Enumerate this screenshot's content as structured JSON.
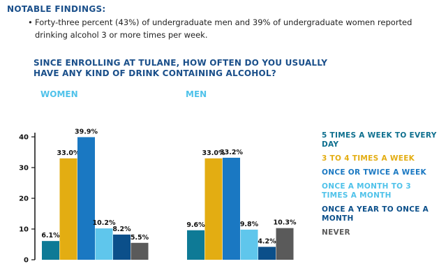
{
  "header": {
    "findings_title": "NOTABLE FINDINGS:",
    "finding_text": "Forty-three percent (43%) of undergraduate men and 39% of undergraduate women reported drinking alcohol 3 or more times per week."
  },
  "chart_data": {
    "type": "bar",
    "title": "SINCE ENROLLING AT TULANE, HOW OFTEN DO YOU USUALLY HAVE ANY KIND OF DRINK CONTAINING ALCOHOL?",
    "categories": [
      "WOMEN",
      "MEN"
    ],
    "series": [
      {
        "name": "5 TIMES A WEEK TO EVERY DAY",
        "color": "#0e7a96",
        "values": [
          6.1,
          9.6
        ]
      },
      {
        "name": "3 TO 4 TIMES A WEEK",
        "color": "#e3ad12",
        "values": [
          33.0,
          33.0
        ]
      },
      {
        "name": "ONCE OR TWICE A WEEK",
        "color": "#1a78c2",
        "values": [
          39.9,
          33.2
        ]
      },
      {
        "name": "ONCE A MONTH TO 3 TIMES A MONTH",
        "color": "#5fc6ec",
        "values": [
          10.2,
          9.8
        ]
      },
      {
        "name": "ONCE A YEAR TO ONCE A MONTH",
        "color": "#0b4f8a",
        "values": [
          8.2,
          4.2
        ]
      },
      {
        "name": "NEVER",
        "color": "#5a5a5a",
        "values": [
          5.5,
          10.3
        ]
      }
    ],
    "data_labels": [
      [
        "6.1%",
        "33.0%",
        "39.9%",
        "10.2%",
        "8.2%",
        "5.5%"
      ],
      [
        "9.6%",
        "33.0%",
        "33.2%",
        "9.8%",
        "4.2%",
        "10.3%"
      ]
    ],
    "yticks": [
      "0",
      "10",
      "20",
      "30",
      "40"
    ],
    "ylim": [
      0,
      42
    ],
    "grid": false,
    "legend_position": "right"
  }
}
